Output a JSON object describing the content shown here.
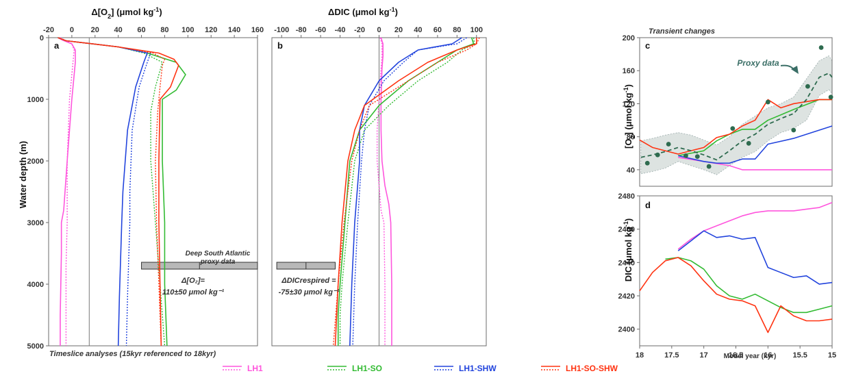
{
  "colors": {
    "LH1": "#ff55dd",
    "LH1-SO": "#33bb33",
    "LH1-SHW": "#2244dd",
    "LH1-SO-SHW": "#ff3311",
    "proxy": "#2e6b4f",
    "proxy_band": "#dde3e1",
    "box": "#b8b8b8"
  },
  "footer_note": "Timeslice analyses (15kyr referenced to 18kyr)",
  "legend": [
    "LH1",
    "LH1-SO",
    "LH1-SHW",
    "LH1-SO-SHW"
  ],
  "annotations": {
    "a_proxy_title_1": "Deep South Atlantic",
    "a_proxy_title_2": "proxy data",
    "a_value_1": "Δ[O₂]=",
    "a_value_2": "110±50 μmol kg⁻¹",
    "b_value_1": "ΔDICrespired =",
    "b_value_2": "-75±30 μmol kg⁻¹",
    "c_title": "Transient changes",
    "c_proxy_label": "Proxy data"
  },
  "chart_data": [
    {
      "panel": "a",
      "type": "line",
      "xlabel": "Δ[O2] (μmol kg-1)",
      "ylabel": "Water depth (m)",
      "xlim": [
        -20,
        160
      ],
      "ylim": [
        5000,
        0
      ],
      "xticks": [
        -20,
        0,
        20,
        40,
        60,
        80,
        100,
        120,
        140,
        160
      ],
      "yticks": [
        0,
        1000,
        2000,
        3000,
        4000,
        5000
      ],
      "reference_line_x": 15,
      "proxy_range": {
        "center": 110,
        "low": 60,
        "high": 160,
        "depth": 3800
      },
      "series": [
        {
          "name": "LH1",
          "style": "solid",
          "x": [
            -12,
            -8,
            0,
            3,
            3,
            0,
            -4,
            -7,
            -9,
            -9,
            -10,
            -10
          ],
          "y": [
            0,
            40,
            100,
            200,
            400,
            1000,
            2000,
            2800,
            3000,
            3500,
            4500,
            5000
          ]
        },
        {
          "name": "LH1",
          "style": "dotted",
          "x": [
            -10,
            -6,
            0,
            2,
            1,
            -2,
            -4,
            -4,
            -5,
            -5,
            -5
          ],
          "y": [
            0,
            40,
            100,
            200,
            400,
            1000,
            2000,
            3000,
            3700,
            4500,
            5000
          ]
        },
        {
          "name": "LH1-SO",
          "style": "solid",
          "x": [
            -12,
            -5,
            40,
            65,
            90,
            98,
            90,
            78,
            78,
            80,
            80,
            82
          ],
          "y": [
            0,
            50,
            150,
            250,
            400,
            600,
            850,
            1000,
            2000,
            3000,
            4000,
            5000
          ]
        },
        {
          "name": "LH1-SO",
          "style": "dotted",
          "x": [
            -12,
            -5,
            40,
            62,
            78,
            72,
            68,
            68,
            72,
            76,
            80
          ],
          "y": [
            0,
            50,
            150,
            250,
            400,
            800,
            1200,
            2000,
            3000,
            4000,
            5000
          ]
        },
        {
          "name": "LH1-SHW",
          "style": "solid",
          "x": [
            -12,
            -5,
            40,
            65,
            62,
            55,
            48,
            46,
            44,
            43,
            41,
            40
          ],
          "y": [
            0,
            50,
            150,
            250,
            400,
            800,
            1500,
            2000,
            2500,
            3000,
            4200,
            5000
          ]
        },
        {
          "name": "LH1-SHW",
          "style": "dotted",
          "x": [
            -12,
            -5,
            40,
            68,
            65,
            58,
            52,
            50,
            50,
            48,
            47
          ],
          "y": [
            0,
            50,
            150,
            250,
            400,
            800,
            1500,
            2500,
            3000,
            4200,
            5000
          ]
        },
        {
          "name": "LH1-SO-SHW",
          "style": "solid",
          "x": [
            -12,
            -5,
            40,
            75,
            88,
            92,
            85,
            76,
            75,
            75,
            76,
            77
          ],
          "y": [
            0,
            50,
            150,
            250,
            350,
            450,
            800,
            1000,
            2000,
            3000,
            4000,
            5000
          ]
        },
        {
          "name": "LH1-SO-SHW",
          "style": "dotted",
          "x": [
            -12,
            -5,
            40,
            70,
            80,
            78,
            76,
            74,
            72,
            73,
            75,
            77
          ],
          "y": [
            0,
            50,
            150,
            250,
            350,
            450,
            800,
            1200,
            2000,
            3000,
            4000,
            5000
          ]
        }
      ]
    },
    {
      "panel": "b",
      "type": "line",
      "xlabel": "ΔDIC (μmol kg-1)",
      "ylabel": "",
      "xlim": [
        -110,
        110
      ],
      "ylim": [
        5000,
        0
      ],
      "xticks": [
        -100,
        -80,
        -60,
        -40,
        -20,
        0,
        20,
        40,
        60,
        80,
        100
      ],
      "reference_line_x": 0,
      "proxy_range": {
        "center": -75,
        "low": -105,
        "high": -45,
        "depth": 3800
      },
      "series": [
        {
          "name": "LH1",
          "style": "solid",
          "x": [
            2,
            4,
            4,
            3,
            2,
            2,
            3,
            6,
            10,
            12,
            13,
            13
          ],
          "y": [
            0,
            100,
            300,
            500,
            1000,
            1500,
            2000,
            2400,
            2700,
            3000,
            4000,
            5000
          ]
        },
        {
          "name": "LH1",
          "style": "dotted",
          "x": [
            1,
            3,
            3,
            2,
            0,
            -2,
            -2,
            2,
            5,
            6,
            6
          ],
          "y": [
            0,
            100,
            300,
            500,
            1000,
            1500,
            2000,
            2800,
            3000,
            4000,
            5000
          ]
        },
        {
          "name": "LH1-SO",
          "style": "solid",
          "x": [
            95,
            97,
            80,
            60,
            30,
            0,
            -20,
            -30,
            -35,
            -40,
            -42,
            -42
          ],
          "y": [
            0,
            100,
            200,
            400,
            700,
            1100,
            1500,
            2000,
            3000,
            4000,
            4500,
            5000
          ]
        },
        {
          "name": "LH1-SO",
          "style": "dotted",
          "x": [
            97,
            98,
            85,
            70,
            40,
            10,
            -15,
            -25,
            -32,
            -38,
            -40,
            -40
          ],
          "y": [
            0,
            100,
            200,
            400,
            700,
            1100,
            1500,
            2000,
            3000,
            4000,
            4500,
            5000
          ]
        },
        {
          "name": "LH1-SHW",
          "style": "solid",
          "x": [
            85,
            75,
            40,
            20,
            0,
            -15,
            -20,
            -20,
            -25,
            -28,
            -30
          ],
          "y": [
            0,
            100,
            200,
            400,
            700,
            1100,
            1500,
            2000,
            3000,
            4000,
            5000
          ]
        },
        {
          "name": "LH1-SHW",
          "style": "dotted",
          "x": [
            90,
            80,
            40,
            25,
            5,
            -10,
            -15,
            -18,
            -22,
            -25,
            -27
          ],
          "y": [
            0,
            100,
            200,
            400,
            700,
            1100,
            1500,
            2000,
            3000,
            4000,
            5000
          ]
        },
        {
          "name": "LH1-SO-SHW",
          "style": "solid",
          "x": [
            100,
            100,
            80,
            50,
            20,
            -15,
            -25,
            -32,
            -38,
            -42,
            -45
          ],
          "y": [
            0,
            100,
            200,
            400,
            700,
            1100,
            1500,
            2000,
            3000,
            4000,
            5000
          ]
        },
        {
          "name": "LH1-SO-SHW",
          "style": "dotted",
          "x": [
            103,
            100,
            90,
            60,
            30,
            -10,
            -20,
            -28,
            -36,
            -42,
            -47
          ],
          "y": [
            0,
            100,
            200,
            400,
            700,
            1100,
            1500,
            2000,
            3000,
            4000,
            5000
          ]
        }
      ]
    },
    {
      "panel": "c",
      "type": "line",
      "title": "Transient changes",
      "xlabel": "",
      "ylabel": "[O2] (μmol kg-1)",
      "xlim": [
        18,
        15
      ],
      "ylim": [
        20,
        200
      ],
      "yticks": [
        40,
        80,
        120,
        160,
        200
      ],
      "series": [
        {
          "name": "LH1",
          "style": "solid",
          "x": [
            17.4,
            17.0,
            16.6,
            16.4,
            16.0,
            15.6,
            15.2,
            15.0
          ],
          "y": [
            55,
            50,
            45,
            40,
            40,
            40,
            40,
            40
          ]
        },
        {
          "name": "LH1-SO",
          "style": "solid",
          "x": [
            17.4,
            17.0,
            16.8,
            16.6,
            16.4,
            16.2,
            16.0,
            15.6,
            15.2,
            15.0
          ],
          "y": [
            57,
            63,
            75,
            83,
            89,
            89,
            100,
            113,
            125,
            125
          ]
        },
        {
          "name": "LH1-SHW",
          "style": "solid",
          "x": [
            17.4,
            17.0,
            16.8,
            16.6,
            16.4,
            16.2,
            16.0,
            15.6,
            15.0
          ],
          "y": [
            57,
            50,
            48,
            48,
            53,
            53,
            71,
            78,
            93
          ]
        },
        {
          "name": "LH1-SO-SHW",
          "style": "solid",
          "x": [
            18.0,
            17.8,
            17.4,
            17.2,
            17.0,
            16.8,
            16.6,
            16.4,
            16.2,
            16.0,
            15.8,
            15.6,
            15.2,
            15.0
          ],
          "y": [
            76,
            67,
            59,
            63,
            67,
            79,
            83,
            93,
            100,
            125,
            115,
            120,
            125,
            125
          ]
        }
      ],
      "proxy_points": {
        "x": [
          17.88,
          17.72,
          17.55,
          17.28,
          17.1,
          16.92,
          16.55,
          16.3,
          16.0,
          15.6,
          15.38,
          15.17,
          15.02
        ],
        "y": [
          48,
          58,
          71,
          57,
          56,
          44,
          90,
          72,
          122,
          88,
          141,
          188,
          128
        ]
      },
      "proxy_trend": {
        "x": [
          17.98,
          17.8,
          17.6,
          17.4,
          17.2,
          17.0,
          16.8,
          16.6,
          16.4,
          16.2,
          16.0,
          15.8,
          15.6,
          15.4,
          15.2,
          15.05,
          15.0
        ],
        "y": [
          55,
          58,
          62,
          67,
          63,
          58,
          52,
          63,
          75,
          83,
          95,
          102,
          108,
          125,
          152,
          157,
          152
        ]
      },
      "proxy_band_upper": {
        "x": [
          17.98,
          17.8,
          17.6,
          17.4,
          17.2,
          17.0,
          16.8,
          16.6,
          16.4,
          16.2,
          16.0,
          15.8,
          15.6,
          15.4,
          15.2,
          15.05,
          15.0
        ],
        "y": [
          75,
          78,
          82,
          85,
          82,
          76,
          70,
          80,
          95,
          105,
          115,
          120,
          128,
          150,
          172,
          178,
          172
        ]
      },
      "proxy_band_lower": {
        "x": [
          17.98,
          17.8,
          17.6,
          17.4,
          17.2,
          17.0,
          16.8,
          16.6,
          16.4,
          16.2,
          16.0,
          15.8,
          15.6,
          15.4,
          15.2,
          15.05,
          15.0
        ],
        "y": [
          35,
          38,
          42,
          50,
          45,
          40,
          34,
          45,
          55,
          62,
          75,
          85,
          90,
          100,
          130,
          137,
          132
        ]
      }
    },
    {
      "panel": "d",
      "type": "line",
      "xlabel": "Model year (kyr)",
      "ylabel": "DIC (μmol kg-1)",
      "xlim": [
        18,
        15
      ],
      "ylim": [
        2390,
        2480
      ],
      "xticks": [
        18,
        17.5,
        17,
        16.5,
        16,
        15.5,
        15
      ],
      "yticks": [
        2400,
        2420,
        2440,
        2460,
        2480
      ],
      "series": [
        {
          "name": "LH1",
          "style": "solid",
          "x": [
            17.4,
            17.2,
            17.0,
            16.8,
            16.6,
            16.4,
            16.2,
            16.0,
            15.8,
            15.6,
            15.4,
            15.2,
            15.0
          ],
          "y": [
            2448,
            2454,
            2459,
            2462,
            2465,
            2468,
            2470,
            2471,
            2471,
            2471,
            2472,
            2473,
            2476
          ]
        },
        {
          "name": "LH1-SO",
          "style": "solid",
          "x": [
            17.6,
            17.4,
            17.2,
            17.0,
            16.8,
            16.6,
            16.4,
            16.2,
            16.0,
            15.8,
            15.6,
            15.4,
            15.2,
            15.0
          ],
          "y": [
            2442,
            2443,
            2441,
            2436,
            2426,
            2420,
            2418,
            2421,
            2417,
            2413,
            2410,
            2410,
            2412,
            2414
          ]
        },
        {
          "name": "LH1-SHW",
          "style": "solid",
          "x": [
            17.4,
            17.2,
            17.0,
            16.8,
            16.6,
            16.4,
            16.2,
            16.0,
            15.8,
            15.6,
            15.4,
            15.2,
            15.0
          ],
          "y": [
            2447,
            2453,
            2459,
            2455,
            2456,
            2454,
            2455,
            2437,
            2434,
            2431,
            2432,
            2427,
            2428
          ]
        },
        {
          "name": "LH1-SO-SHW",
          "style": "solid",
          "x": [
            18.0,
            17.8,
            17.6,
            17.4,
            17.2,
            17.0,
            16.8,
            16.6,
            16.4,
            16.2,
            16.0,
            15.8,
            15.6,
            15.4,
            15.2,
            15.0
          ],
          "y": [
            2423,
            2434,
            2441,
            2443,
            2438,
            2429,
            2421,
            2418,
            2417,
            2414,
            2398,
            2414,
            2408,
            2405,
            2405,
            2406
          ]
        }
      ]
    }
  ]
}
